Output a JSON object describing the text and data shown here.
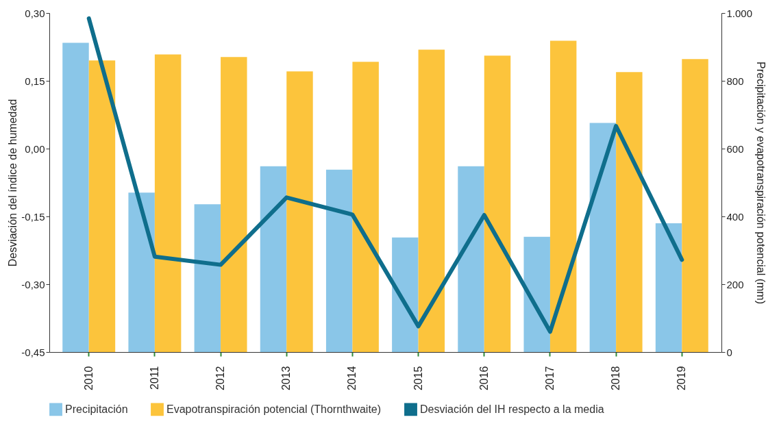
{
  "chart_data": {
    "type": "bar",
    "ylabel": "Desviación del índice de humedad",
    "y2label": "Precipitación y evapotranspiración potencial (mm)",
    "categories": [
      "2010",
      "2011",
      "2012",
      "2013",
      "2014",
      "2015",
      "2016",
      "2017",
      "2018",
      "2019"
    ],
    "series": [
      {
        "name": "Precipitación",
        "color": "#8ac6e8",
        "axis": "y2",
        "values": [
          912,
          470,
          436,
          548,
          538,
          338,
          548,
          340,
          676,
          380
        ]
      },
      {
        "name": "Evapotranspiración potencial (Thornthwaite)",
        "color": "#fcc43c",
        "axis": "y2",
        "values": [
          860,
          878,
          870,
          828,
          856,
          892,
          874,
          918,
          826,
          864
        ]
      },
      {
        "name": "Desviación del IH respecto a la media",
        "type": "line",
        "color": "#0f6e8c",
        "axis": "y",
        "values": [
          0.288,
          -0.239,
          -0.257,
          -0.108,
          -0.146,
          -0.393,
          -0.147,
          -0.405,
          0.05,
          -0.246
        ]
      }
    ],
    "ylim": [
      -0.45,
      0.3
    ],
    "yticks": [
      {
        "value": -0.45,
        "label": "-0,45"
      },
      {
        "value": -0.3,
        "label": "-0,30"
      },
      {
        "value": -0.15,
        "label": "-0,15"
      },
      {
        "value": 0,
        "label": "0,00"
      },
      {
        "value": 0.15,
        "label": "0,15"
      },
      {
        "value": 0.3,
        "label": "0,30"
      }
    ],
    "y2lim": [
      0,
      1000
    ],
    "y2ticks": [
      0,
      200,
      400,
      600,
      800,
      {
        "value": 1000,
        "label": "1.000"
      }
    ],
    "grid": false,
    "legend": "bottom",
    "marker": "none",
    "line_style": "solid"
  }
}
